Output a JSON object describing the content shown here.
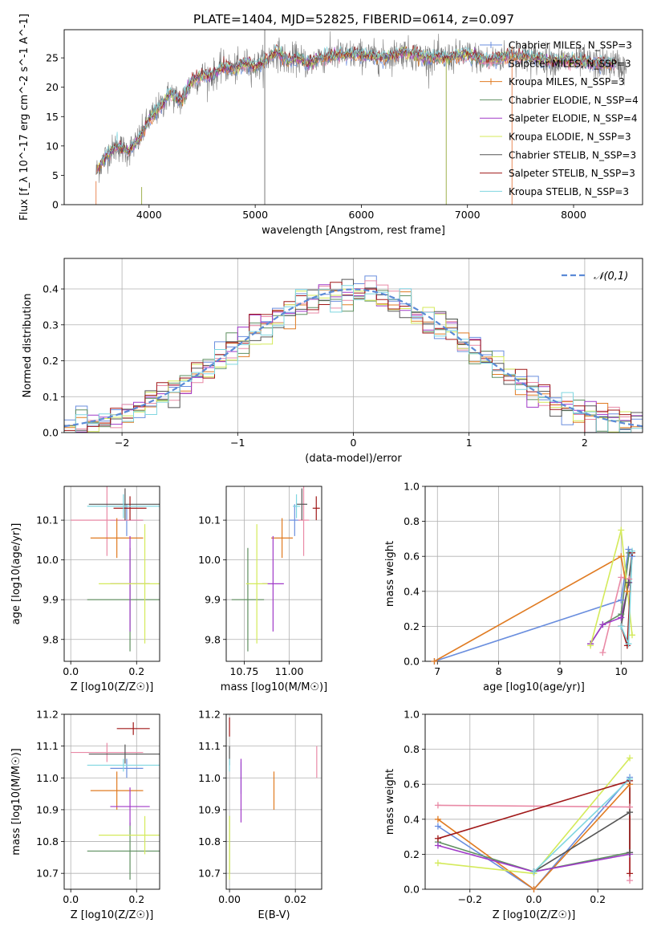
{
  "figure_title": "PLATE=1404, MJD=52825, FIBERID=0614, z=0.097",
  "series_colors": {
    "Chabrier MILES": "#6a8ede",
    "Salpeter MILES": "#e98aa6",
    "Kroupa MILES": "#e07b22",
    "Chabrier ELODIE": "#5e8f60",
    "Salpeter ELODIE": "#a03ac8",
    "Kroupa ELODIE": "#d4ea5a",
    "Chabrier STELIB": "#555555",
    "Salpeter STELIB": "#a01818",
    "Kroupa STELIB": "#7fd6e0"
  },
  "chart_data": [
    {
      "id": "spectrum",
      "type": "line",
      "title": "",
      "xlabel": "wavelength [Angstrom, rest frame]",
      "ylabel": "Flux [f_λ 10^-17 erg cm^-2 s^-1 A^-1]",
      "xlim": [
        3200,
        8650
      ],
      "ylim": [
        0,
        29.8
      ],
      "xticks": [
        4000,
        5000,
        6000,
        7000,
        8000
      ],
      "yticks": [
        0,
        5,
        10,
        15,
        20,
        25
      ],
      "grid": false,
      "legend_position": "right",
      "observed_spectrum_anchor_points": {
        "wavelength": [
          3500,
          3600,
          3700,
          3800,
          3900,
          4000,
          4100,
          4200,
          4300,
          4400,
          4500,
          4600,
          4700,
          4800,
          4900,
          5000,
          5100,
          5200,
          5300,
          5400,
          5500,
          5600,
          5800,
          6000,
          6200,
          6400,
          6600,
          6800,
          7000,
          7200,
          7400,
          7600,
          7800,
          8000,
          8200,
          8400,
          8500
        ],
        "flux": [
          5.5,
          8.5,
          10.0,
          9.0,
          11.0,
          14.5,
          16.5,
          19.0,
          17.5,
          21.0,
          22.0,
          22.0,
          23.5,
          23.0,
          24.0,
          23.5,
          24.5,
          26.0,
          24.5,
          25.0,
          24.0,
          25.0,
          25.5,
          25.5,
          25.0,
          26.0,
          25.0,
          25.0,
          25.5,
          24.5,
          25.5,
          25.0,
          24.5,
          24.5,
          24.0,
          24.0,
          23.0
        ]
      },
      "legend": [
        {
          "label": "Chabrier MILES, N_SSP=3",
          "color": "#6a8ede",
          "marker": "+"
        },
        {
          "label": "Salpeter MILES, N_SSP=3",
          "color": "#e98aa6",
          "marker": "+"
        },
        {
          "label": "Kroupa MILES, N_SSP=3",
          "color": "#e07b22",
          "marker": "+"
        },
        {
          "label": "Chabrier ELODIE, N_SSP=4",
          "color": "#5e8f60",
          "marker": ""
        },
        {
          "label": "Salpeter ELODIE, N_SSP=4",
          "color": "#a03ac8",
          "marker": ""
        },
        {
          "label": "Kroupa ELODIE, N_SSP=3",
          "color": "#d4ea5a",
          "marker": ""
        },
        {
          "label": "Chabrier STELIB, N_SSP=3",
          "color": "#555555",
          "marker": ""
        },
        {
          "label": "Salpeter STELIB, N_SSP=3",
          "color": "#a01818",
          "marker": ""
        },
        {
          "label": "Kroupa STELIB, N_SSP=3",
          "color": "#7fd6e0",
          "marker": ""
        }
      ]
    },
    {
      "id": "residuals",
      "type": "line",
      "title": "",
      "xlabel": "(data-model)/error",
      "ylabel": "Normed distribution",
      "xlim": [
        -2.5,
        2.5
      ],
      "ylim": [
        0,
        0.485
      ],
      "xticks": [
        -2,
        -1,
        0,
        1,
        2
      ],
      "xticklabels": [
        "−2",
        "−1",
        "0",
        "1",
        "2"
      ],
      "yticks": [
        0.0,
        0.1,
        0.2,
        0.3,
        0.4
      ],
      "yticklabels": [
        "0.0",
        "0.1",
        "0.2",
        "0.3",
        "0.4"
      ],
      "grid": true,
      "bin_width": 0.1,
      "reference_curve": {
        "label": "𝒩(0,1)",
        "color": "#5b8ad6",
        "mean": 0,
        "sigma": 1
      },
      "legend_position": "top-right"
    },
    {
      "id": "age_vs_Z",
      "type": "scatter",
      "xlabel": "Z [log10(Z/Z☉)]",
      "ylabel": "age [log10(age/yr)]",
      "xlim": [
        -0.02,
        0.27
      ],
      "ylim": [
        9.745,
        10.185
      ],
      "xticks": [
        0.0,
        0.2
      ],
      "xticklabels": [
        "0.0",
        "0.2"
      ],
      "yticks": [
        9.8,
        9.9,
        10.0,
        10.1
      ],
      "yticklabels": [
        "9.8",
        "9.9",
        "10.0",
        "10.1"
      ],
      "grid": true,
      "points": [
        {
          "series": "Chabrier MILES",
          "x": 0.17,
          "xerr": 0.05,
          "y": 10.1,
          "yerr": 0.04
        },
        {
          "series": "Salpeter MILES",
          "x": 0.11,
          "xerr": 0.11,
          "y": 10.1,
          "yerr": 0.09
        },
        {
          "series": "Kroupa MILES",
          "x": 0.14,
          "xerr": 0.08,
          "y": 10.055,
          "yerr": 0.05
        },
        {
          "series": "Chabrier ELODIE",
          "x": 0.18,
          "xerr": 0.13,
          "y": 9.9,
          "yerr": 0.13
        },
        {
          "series": "Salpeter ELODIE",
          "x": 0.18,
          "xerr": 0.06,
          "y": 9.94,
          "yerr": 0.12
        },
        {
          "series": "Kroupa ELODIE",
          "x": 0.225,
          "xerr": 0.14,
          "y": 9.94,
          "yerr": 0.15
        },
        {
          "series": "Chabrier STELIB",
          "x": 0.165,
          "xerr": 0.11,
          "y": 10.14,
          "yerr": 0.04
        },
        {
          "series": "Salpeter STELIB",
          "x": 0.18,
          "xerr": 0.05,
          "y": 10.13,
          "yerr": 0.03
        },
        {
          "series": "Kroupa STELIB",
          "x": 0.16,
          "xerr": 0.11,
          "y": 10.135,
          "yerr": 0.03
        }
      ]
    },
    {
      "id": "age_vs_mass",
      "type": "scatter",
      "xlabel": "mass [log10(M/M☉)]",
      "ylabel": "",
      "xlim": [
        10.65,
        11.18
      ],
      "ylim": [
        9.745,
        10.185
      ],
      "xticks": [
        10.75,
        11.0
      ],
      "xticklabels": [
        "10.75",
        "11.00"
      ],
      "yticks": [
        9.8,
        9.9,
        10.0,
        10.1
      ],
      "yticklabels": [
        "9.8",
        "9.9",
        "10.0",
        "10.1"
      ],
      "grid": true,
      "points": [
        {
          "series": "Chabrier MILES",
          "x": 11.03,
          "xerr": 0.03,
          "y": 10.1,
          "yerr": 0.04
        },
        {
          "series": "Salpeter MILES",
          "x": 11.08,
          "xerr": 0.03,
          "y": 10.1,
          "yerr": 0.09
        },
        {
          "series": "Kroupa MILES",
          "x": 10.96,
          "xerr": 0.06,
          "y": 10.055,
          "yerr": 0.05
        },
        {
          "series": "Chabrier ELODIE",
          "x": 10.77,
          "xerr": 0.09,
          "y": 9.9,
          "yerr": 0.13
        },
        {
          "series": "Salpeter ELODIE",
          "x": 10.91,
          "xerr": 0.06,
          "y": 9.94,
          "yerr": 0.12
        },
        {
          "series": "Kroupa ELODIE",
          "x": 10.82,
          "xerr": 0.06,
          "y": 9.94,
          "yerr": 0.15
        },
        {
          "series": "Chabrier STELIB",
          "x": 11.07,
          "xerr": 0.03,
          "y": 10.14,
          "yerr": 0.04
        },
        {
          "series": "Salpeter STELIB",
          "x": 11.15,
          "xerr": 0.02,
          "y": 10.13,
          "yerr": 0.03
        },
        {
          "series": "Kroupa STELIB",
          "x": 11.04,
          "xerr": 0.02,
          "y": 10.135,
          "yerr": 0.03
        }
      ]
    },
    {
      "id": "weight_vs_age",
      "type": "line",
      "xlabel": "age [log10(age/yr)]",
      "ylabel": "mass weight",
      "xlim": [
        6.8,
        10.35
      ],
      "ylim": [
        0.0,
        1.0
      ],
      "xticks": [
        7,
        8,
        9,
        10
      ],
      "yticks": [
        0.0,
        0.2,
        0.4,
        0.6,
        0.8,
        1.0
      ],
      "yticklabels": [
        "0.0",
        "0.2",
        "0.4",
        "0.6",
        "0.8",
        "1.0"
      ],
      "grid": true,
      "series": [
        {
          "name": "Chabrier MILES",
          "x": [
            6.95,
            10.0,
            10.12,
            10.18
          ],
          "y": [
            0.0,
            0.35,
            0.64,
            0.6
          ]
        },
        {
          "name": "Salpeter MILES",
          "x": [
            9.7,
            10.0,
            10.13
          ],
          "y": [
            0.05,
            0.48,
            0.47
          ]
        },
        {
          "name": "Kroupa MILES",
          "x": [
            6.95,
            10.0,
            10.1
          ],
          "y": [
            0.0,
            0.6,
            0.4
          ]
        },
        {
          "name": "Chabrier ELODIE",
          "x": [
            9.5,
            9.7,
            10.0,
            10.13
          ],
          "y": [
            0.1,
            0.21,
            0.27,
            0.62
          ]
        },
        {
          "name": "Salpeter ELODIE",
          "x": [
            9.5,
            9.7,
            10.0,
            10.13
          ],
          "y": [
            0.1,
            0.21,
            0.25,
            0.45
          ]
        },
        {
          "name": "Kroupa ELODIE",
          "x": [
            9.5,
            10.0,
            10.18
          ],
          "y": [
            0.09,
            0.75,
            0.15
          ]
        },
        {
          "name": "Chabrier STELIB",
          "x": [
            10.0,
            10.12,
            10.18
          ],
          "y": [
            0.2,
            0.45,
            0.62
          ]
        },
        {
          "name": "Salpeter STELIB",
          "x": [
            10.0,
            10.1,
            10.18
          ],
          "y": [
            0.2,
            0.09,
            0.62
          ]
        },
        {
          "name": "Kroupa STELIB",
          "x": [
            10.0,
            10.12,
            10.18
          ],
          "y": [
            0.2,
            0.1,
            0.63
          ]
        }
      ]
    },
    {
      "id": "mass_vs_Z",
      "type": "scatter",
      "xlabel": "Z [log10(Z/Z☉)]",
      "ylabel": "mass [log10(M/M☉)]",
      "xlim": [
        -0.02,
        0.27
      ],
      "ylim": [
        10.65,
        11.2
      ],
      "xticks": [
        0.0,
        0.2
      ],
      "xticklabels": [
        "0.0",
        "0.2"
      ],
      "yticks": [
        10.7,
        10.8,
        10.9,
        11.0,
        11.1,
        11.2
      ],
      "yticklabels": [
        "10.7",
        "10.8",
        "10.9",
        "11.0",
        "11.1",
        "11.2"
      ],
      "grid": true,
      "points": [
        {
          "series": "Chabrier MILES",
          "x": 0.17,
          "xerr": 0.05,
          "y": 11.03,
          "yerr": 0.03
        },
        {
          "series": "Salpeter MILES",
          "x": 0.11,
          "xerr": 0.11,
          "y": 11.08,
          "yerr": 0.03
        },
        {
          "series": "Kroupa MILES",
          "x": 0.14,
          "xerr": 0.08,
          "y": 10.96,
          "yerr": 0.06
        },
        {
          "series": "Chabrier ELODIE",
          "x": 0.18,
          "xerr": 0.13,
          "y": 10.77,
          "yerr": 0.09
        },
        {
          "series": "Salpeter ELODIE",
          "x": 0.18,
          "xerr": 0.06,
          "y": 10.91,
          "yerr": 0.06
        },
        {
          "series": "Kroupa ELODIE",
          "x": 0.225,
          "xerr": 0.14,
          "y": 10.82,
          "yerr": 0.06
        },
        {
          "series": "Chabrier STELIB",
          "x": 0.165,
          "xerr": 0.11,
          "y": 11.075,
          "yerr": 0.03
        },
        {
          "series": "Salpeter STELIB",
          "x": 0.19,
          "xerr": 0.05,
          "y": 11.155,
          "yerr": 0.02
        },
        {
          "series": "Kroupa STELIB",
          "x": 0.16,
          "xerr": 0.11,
          "y": 11.04,
          "yerr": 0.02
        }
      ]
    },
    {
      "id": "mass_vs_ebv",
      "type": "scatter",
      "xlabel": "E(B-V)",
      "ylabel": "",
      "xlim": [
        -0.001,
        0.028
      ],
      "ylim": [
        10.65,
        11.2
      ],
      "xticks": [
        0.0,
        0.02
      ],
      "xticklabels": [
        "0.00",
        "0.02"
      ],
      "yticks": [
        10.7,
        10.8,
        10.9,
        11.0,
        11.1,
        11.2
      ],
      "yticklabels": [
        "10.7",
        "10.8",
        "10.9",
        "11.0",
        "11.1",
        "11.2"
      ],
      "grid": true,
      "points": [
        {
          "series": "Chabrier MILES",
          "x": 0.0035,
          "xerr": 0,
          "y": 11.0,
          "yerr": 0.05
        },
        {
          "series": "Salpeter MILES",
          "x": 0.0265,
          "xerr": 0,
          "y": 11.05,
          "yerr": 0.05
        },
        {
          "series": "Kroupa MILES",
          "x": 0.0135,
          "xerr": 0,
          "y": 10.96,
          "yerr": 0.06
        },
        {
          "series": "Chabrier ELODIE",
          "x": 0.0,
          "xerr": 0,
          "y": 10.79,
          "yerr": 0.09
        },
        {
          "series": "Salpeter ELODIE",
          "x": 0.0035,
          "xerr": 0,
          "y": 10.96,
          "yerr": 0.1
        },
        {
          "series": "Kroupa ELODIE",
          "x": 0.0,
          "xerr": 0,
          "y": 10.78,
          "yerr": 0.1
        },
        {
          "series": "Chabrier STELIB",
          "x": 0.0,
          "xerr": 0,
          "y": 11.07,
          "yerr": 0.03
        },
        {
          "series": "Salpeter STELIB",
          "x": 0.0,
          "xerr": 0,
          "y": 11.16,
          "yerr": 0.03
        },
        {
          "series": "Kroupa STELIB",
          "x": 0.0,
          "xerr": 0,
          "y": 11.04,
          "yerr": 0.02
        }
      ]
    },
    {
      "id": "weight_vs_Z",
      "type": "line",
      "xlabel": "Z [log10(Z/Z☉)]",
      "ylabel": "mass weight",
      "xlim": [
        -0.34,
        0.34
      ],
      "ylim": [
        0.0,
        1.0
      ],
      "xticks": [
        -0.2,
        0.0,
        0.2
      ],
      "xticklabels": [
        "−0.2",
        "0.0",
        "0.2"
      ],
      "yticks": [
        0.0,
        0.2,
        0.4,
        0.6,
        0.8,
        1.0
      ],
      "yticklabels": [
        "0.0",
        "0.2",
        "0.4",
        "0.6",
        "0.8",
        "1.0"
      ],
      "grid": true,
      "series": [
        {
          "name": "Chabrier MILES",
          "x": [
            -0.3,
            0.0,
            0.3
          ],
          "y": [
            0.36,
            0.0,
            0.64
          ]
        },
        {
          "name": "Salpeter MILES",
          "x": [
            -0.3,
            0.3,
            0.3
          ],
          "y": [
            0.48,
            0.47,
            0.05
          ]
        },
        {
          "name": "Kroupa MILES",
          "x": [
            -0.3,
            0.0,
            0.3
          ],
          "y": [
            0.4,
            0.0,
            0.6
          ]
        },
        {
          "name": "Chabrier ELODIE",
          "x": [
            -0.3,
            0.0,
            0.3,
            0.3
          ],
          "y": [
            0.27,
            0.1,
            0.21,
            0.62
          ]
        },
        {
          "name": "Salpeter ELODIE",
          "x": [
            -0.3,
            0.0,
            0.3
          ],
          "y": [
            0.25,
            0.1,
            0.2
          ]
        },
        {
          "name": "Kroupa ELODIE",
          "x": [
            -0.3,
            0.0,
            0.3
          ],
          "y": [
            0.15,
            0.09,
            0.75
          ]
        },
        {
          "name": "Chabrier STELIB",
          "x": [
            0.0,
            0.3,
            0.3
          ],
          "y": [
            0.1,
            0.44,
            0.21
          ]
        },
        {
          "name": "Salpeter STELIB",
          "x": [
            -0.3,
            0.3,
            0.3
          ],
          "y": [
            0.29,
            0.62,
            0.09
          ]
        },
        {
          "name": "Kroupa STELIB",
          "x": [
            0.0,
            0.3
          ],
          "y": [
            0.1,
            0.63
          ]
        }
      ]
    }
  ]
}
